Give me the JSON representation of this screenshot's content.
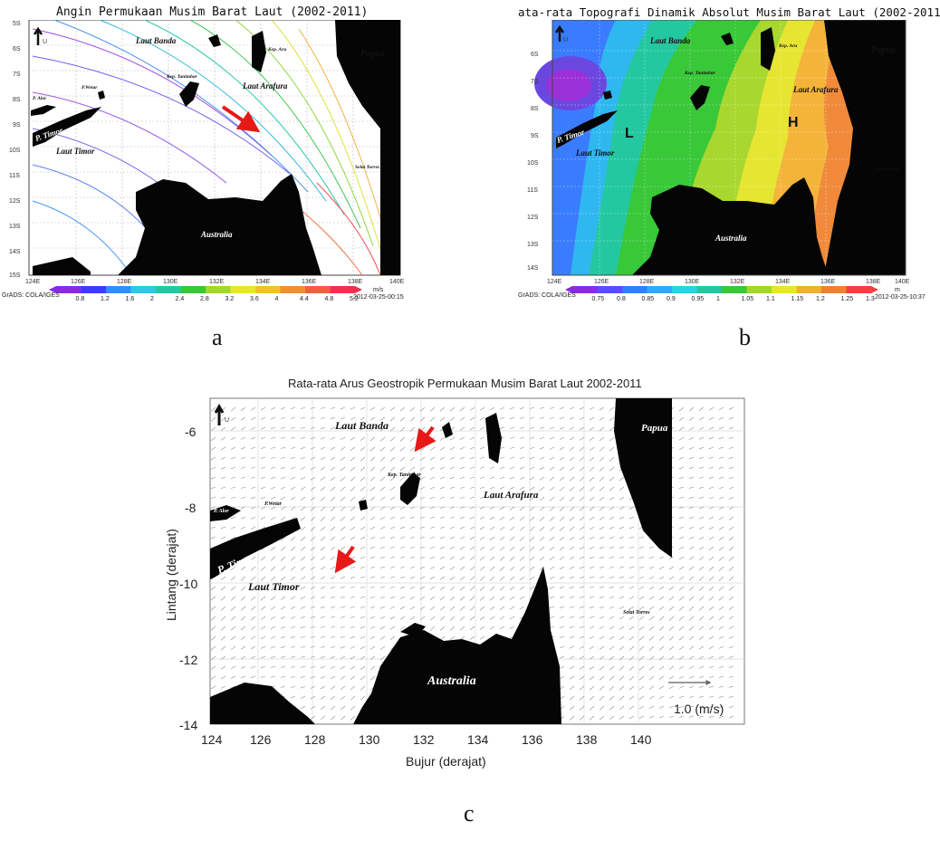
{
  "panel_a": {
    "title": "Angin Permukaan Musim Barat Laut (2002-2011)",
    "label": "a",
    "place_labels": {
      "laut_banda": "Laut Banda",
      "kep_aru": "Kep. Aru",
      "papua": "Papua",
      "kep_tanimbar": "Kep. Tanimbar",
      "laut_arafura": "Laut Arafura",
      "p_alor": "P. Alor",
      "p_wetar": "P.Wetar",
      "p_timor": "P. Timor",
      "laut_timor": "Laut Timor",
      "selat_torres": "Selat Torres",
      "australia": "Australia"
    },
    "lat_ticks": [
      "5S",
      "6S",
      "7S",
      "8S",
      "9S",
      "10S",
      "11S",
      "12S",
      "13S",
      "14S",
      "15S"
    ],
    "lon_ticks": [
      "124E",
      "126E",
      "128E",
      "130E",
      "132E",
      "134E",
      "136E",
      "138E",
      "140E"
    ],
    "colorbar": {
      "ticks": [
        "0.8",
        "1.2",
        "1.6",
        "2",
        "2.4",
        "2.8",
        "3.2",
        "3.6",
        "4",
        "4.4",
        "4.8",
        "5.2"
      ],
      "colors": [
        "#8a2be2",
        "#3c3cff",
        "#2f8fff",
        "#2fc8e6",
        "#24c8a0",
        "#38c838",
        "#a0d82c",
        "#e6e632",
        "#f0c030",
        "#f09030",
        "#f06040",
        "#f03050"
      ],
      "unit": "m/s",
      "credit": "GrADS: COLA/IGES",
      "timestamp": "2012-03-25-00:15"
    },
    "north_mark": "U"
  },
  "panel_b": {
    "title": "ata-rata Topografi Dinamik Absolut Musim Barat Laut (2002-2011)",
    "label": "b",
    "place_labels": {
      "laut_banda": "Laut Banda",
      "kep_aru": "Kep. Aru",
      "papua": "Papua",
      "kep_tanimbar": "Kep. Tanimbar",
      "laut_arafura": "Laut Arafura",
      "p_timor": "P. Timor",
      "laut_timor": "Laut Timor",
      "selat_torres": "Selat Torres",
      "australia": "Australia",
      "low": "L",
      "high": "H"
    },
    "lat_ticks": [
      "6S",
      "7S",
      "8S",
      "9S",
      "10S",
      "11S",
      "12S",
      "13S",
      "14S"
    ],
    "lon_ticks": [
      "124E",
      "126E",
      "128E",
      "130E",
      "132E",
      "134E",
      "136E",
      "138E",
      "140E"
    ],
    "colorbar": {
      "ticks": [
        "0.75",
        "0.8",
        "0.85",
        "0.9",
        "0.95",
        "1",
        "1.05",
        "1.1",
        "1.15",
        "1.2",
        "1.25",
        "1.3"
      ],
      "colors": [
        "#8a2be2",
        "#5a4cff",
        "#2f7fff",
        "#2faaff",
        "#2fd0e6",
        "#24c8a0",
        "#38c838",
        "#a0d82c",
        "#e6e632",
        "#f0b030",
        "#f08030",
        "#f04040"
      ],
      "unit": "m",
      "credit": "GrADS: COLA/IGES",
      "timestamp": "2012-03-25-10:37"
    },
    "north_mark": "U"
  },
  "panel_c": {
    "title": "Rata-rata Arus Geostropik Permukaan Musim Barat Laut 2002-2011",
    "label": "c",
    "ylabel": "Lintang (derajat)",
    "xlabel": "Bujur (derajat)",
    "yticks": [
      "-6",
      "-8",
      "-10",
      "-12",
      "-14"
    ],
    "xticks": [
      "124",
      "126",
      "128",
      "130",
      "132",
      "134",
      "136",
      "138",
      "140"
    ],
    "place_labels": {
      "laut_banda": "Laut Banda",
      "papua": "Papua",
      "kep_aru": "Kep. Aru",
      "kep_tanimbar": "Kep. Tanimbar",
      "laut_arafura": "Laut Arafura",
      "p_alor": "P. Alor",
      "p_wetar": "P.Wetar",
      "p_timor": "P. Timor",
      "laut_timor": "Laut Timor",
      "selat_torres": "Selat Torres",
      "australia": "Australia"
    },
    "ref_vector": "1.0 (m/s)",
    "north_mark": "U"
  },
  "arrow_color": "#e81818"
}
